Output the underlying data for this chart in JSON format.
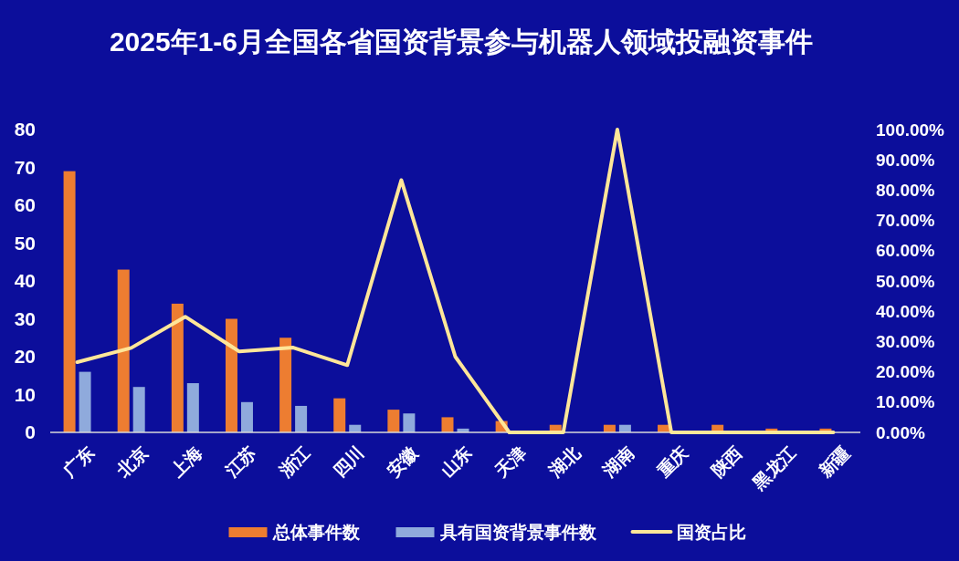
{
  "chart_data": {
    "type": "bar",
    "title": "2025年1-6月全国各省国资背景参与机器人领域投融资事件",
    "categories": [
      "广东",
      "北京",
      "上海",
      "江苏",
      "浙江",
      "四川",
      "安徽",
      "山东",
      "天津",
      "湖北",
      "湖南",
      "重庆",
      "陕西",
      "黑龙江",
      "新疆"
    ],
    "series": [
      {
        "name": "总体事件数",
        "color": "#ed7d31",
        "values": [
          69,
          43,
          34,
          30,
          25,
          9,
          6,
          4,
          3,
          2,
          2,
          2,
          2,
          1,
          1
        ]
      },
      {
        "name": "具有国资背景事件数",
        "color": "#8faadc",
        "values": [
          16,
          12,
          13,
          8,
          7,
          2,
          5,
          1,
          0,
          0,
          2,
          0,
          0,
          0,
          0
        ]
      },
      {
        "name": "国资占比",
        "type": "line",
        "axis": "y2",
        "color": "#ffe699",
        "values": [
          23.2,
          27.9,
          38.2,
          26.7,
          28,
          22.2,
          83.3,
          25,
          0,
          0,
          100,
          0,
          0,
          0,
          0
        ]
      }
    ],
    "ylim": [
      0,
      80
    ],
    "yticks": [
      0,
      10,
      20,
      30,
      40,
      50,
      60,
      70,
      80
    ],
    "y2lim": [
      0,
      100
    ],
    "y2ticks": [
      {
        "value": 0,
        "label": "0.00%"
      },
      {
        "value": 10,
        "label": "10.00%"
      },
      {
        "value": 20,
        "label": "20.00%"
      },
      {
        "value": 30,
        "label": "30.00%"
      },
      {
        "value": 40,
        "label": "40.00%"
      },
      {
        "value": 50,
        "label": "50.00%"
      },
      {
        "value": 60,
        "label": "60.00%"
      },
      {
        "value": 70,
        "label": "70.00%"
      },
      {
        "value": 80,
        "label": "80.00%"
      },
      {
        "value": 90,
        "label": "90.00%"
      },
      {
        "value": 100,
        "label": "100.00%"
      }
    ],
    "legend": "bottom",
    "grid": false
  }
}
